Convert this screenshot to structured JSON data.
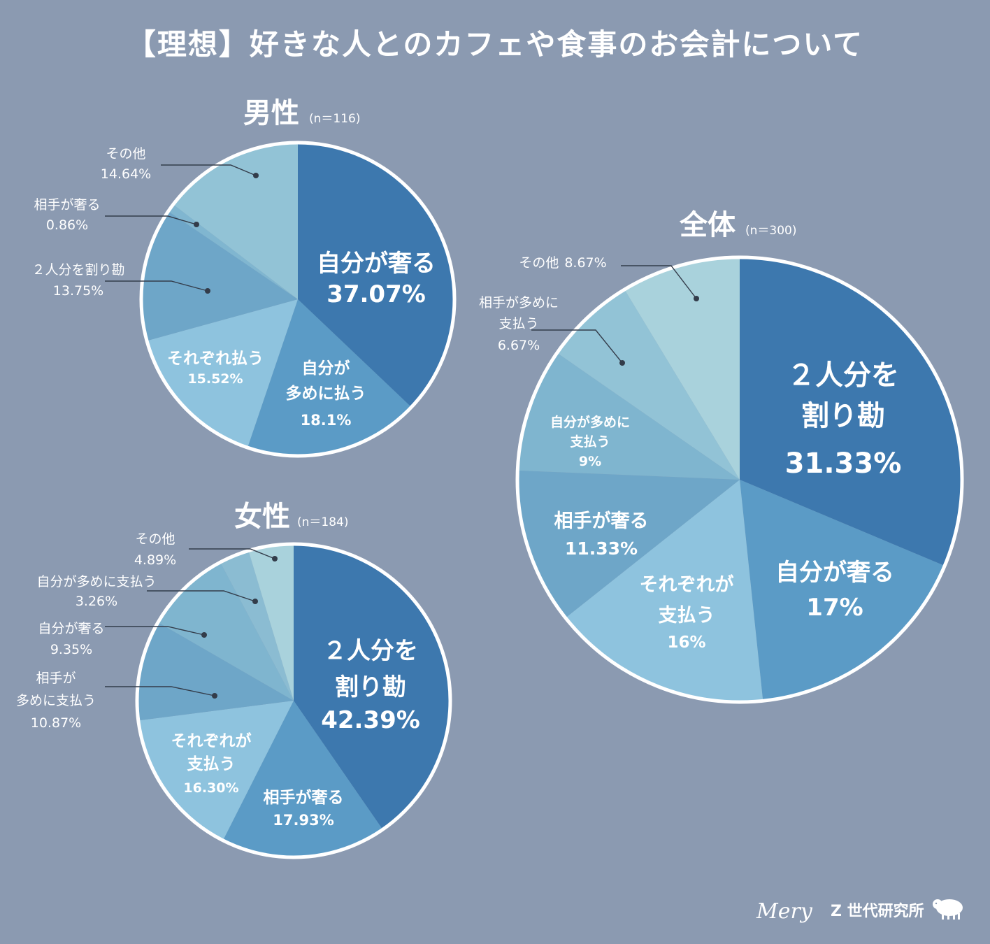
{
  "title": "【理想】好きな人とのカフェや食事のお会計について",
  "brand": {
    "logo_text": "Mery",
    "lab_name": "Z 世代研究所"
  },
  "colors": {
    "background": "#8b9ab1",
    "slice_palette": [
      "#3d78ae",
      "#5b9bc6",
      "#8ec3de",
      "#6ea6c8",
      "#7fb5cf",
      "#99cbdc",
      "#a9d2dc"
    ]
  },
  "chart_data": [
    {
      "type": "pie",
      "title": "男性",
      "n_label": "(n＝116)",
      "slices": [
        {
          "label": "自分が奢る",
          "value": 37.07,
          "value_text": "37.07%",
          "label_position": "inside"
        },
        {
          "label": "自分が\n多めに払う",
          "value": 18.1,
          "value_text": "18.1%",
          "label_position": "inside"
        },
        {
          "label": "それぞれ払う",
          "value": 15.52,
          "value_text": "15.52%",
          "label_position": "inside"
        },
        {
          "label": "２人分を割り勘",
          "value": 13.75,
          "value_text": "13.75%",
          "label_position": "outside"
        },
        {
          "label": "相手が奢る",
          "value": 0.86,
          "value_text": "0.86%",
          "label_position": "outside"
        },
        {
          "label": "その他",
          "value": 14.64,
          "value_text": "14.64%",
          "label_position": "outside"
        }
      ]
    },
    {
      "type": "pie",
      "title": "女性",
      "n_label": "(n＝184)",
      "slices": [
        {
          "label": "２人分を\n割り勘",
          "value": 42.39,
          "value_text": "42.39%",
          "label_position": "inside"
        },
        {
          "label": "相手が奢る",
          "value": 17.93,
          "value_text": "17.93%",
          "label_position": "inside"
        },
        {
          "label": "それぞれが\n支払う",
          "value": 16.3,
          "value_text": "16.30%",
          "label_position": "inside"
        },
        {
          "label": "相手が\n多めに支払う",
          "value": 10.87,
          "value_text": "10.87%",
          "label_position": "outside"
        },
        {
          "label": "自分が奢る",
          "value": 9.35,
          "value_text": "9.35%",
          "label_position": "outside"
        },
        {
          "label": "自分が多めに支払う",
          "value": 3.26,
          "value_text": "3.26%",
          "label_position": "outside"
        },
        {
          "label": "その他",
          "value": 4.89,
          "value_text": "4.89%",
          "label_position": "outside"
        }
      ]
    },
    {
      "type": "pie",
      "title": "全体",
      "n_label": "(n＝300)",
      "slices": [
        {
          "label": "２人分を\n割り勘",
          "value": 31.33,
          "value_text": "31.33%",
          "label_position": "inside"
        },
        {
          "label": "自分が奢る",
          "value": 17,
          "value_text": "17%",
          "label_position": "inside"
        },
        {
          "label": "それぞれが\n支払う",
          "value": 16,
          "value_text": "16%",
          "label_position": "inside"
        },
        {
          "label": "相手が奢る",
          "value": 11.33,
          "value_text": "11.33%",
          "label_position": "inside"
        },
        {
          "label": "自分が多めに\n支払う",
          "value": 9,
          "value_text": "9%",
          "label_position": "inside"
        },
        {
          "label": "相手が多めに\n支払う",
          "value": 6.67,
          "value_text": "6.67%",
          "label_position": "outside"
        },
        {
          "label": "その他",
          "value": 8.67,
          "value_text": "8.67%",
          "label_position": "outside",
          "inline_value": true
        }
      ]
    }
  ]
}
